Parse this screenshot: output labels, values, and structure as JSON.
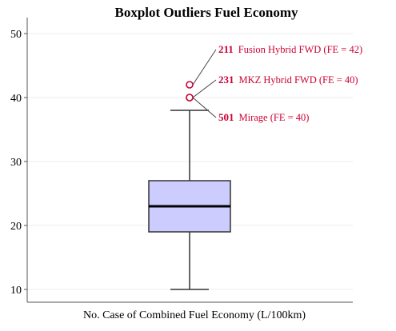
{
  "chart_data": {
    "type": "boxplot",
    "title": "Boxplot Outliers Fuel Economy",
    "xlabel": "No. Case of Combined Fuel Economy (L/100km)",
    "ylabel": "",
    "ylim": [
      8,
      52
    ],
    "yticks": [
      10,
      20,
      30,
      40,
      50
    ],
    "grid": true,
    "box": {
      "min": 10,
      "q1": 19,
      "median": 23,
      "q3": 27,
      "max": 38
    },
    "outliers": [
      {
        "id": "211",
        "label": "Fusion Hybrid FWD (FE = 42)",
        "value": 42
      },
      {
        "id": "231",
        "label": "MKZ Hybrid FWD (FE = 40)",
        "value": 40
      },
      {
        "id": "501",
        "label": "Mirage (FE = 40)",
        "value": 40
      }
    ],
    "colors": {
      "box_fill": "#ccccff",
      "box_stroke": "#333333",
      "outlier": "#cc0033",
      "grid": "#eeeeee",
      "axis": "#555555"
    }
  }
}
